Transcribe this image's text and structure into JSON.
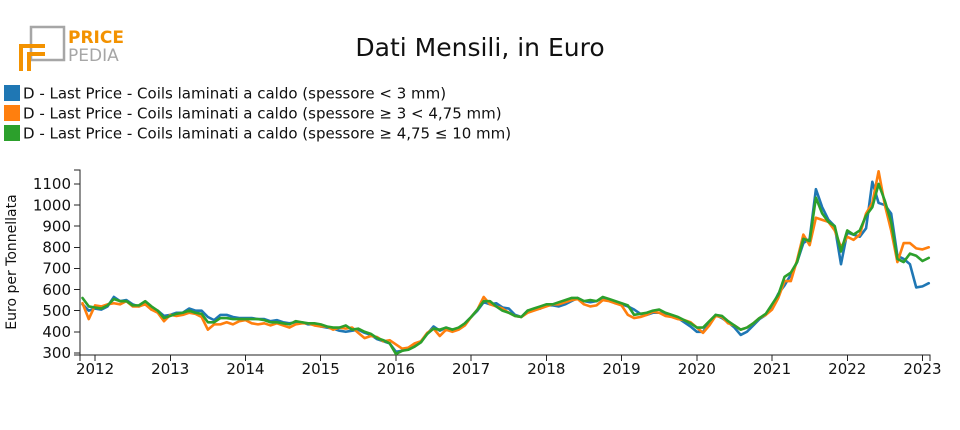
{
  "logo": {
    "line1": "PRICE",
    "line2": "PEDIA",
    "accent_color": "#f39200",
    "grey_color": "#a6a6a6"
  },
  "chart_data": {
    "type": "line",
    "title": "Dati Mensili, in Euro",
    "xlabel": "",
    "ylabel": "Euro per Tonnellata",
    "xlim": [
      2011.8,
      2023.1
    ],
    "ylim": [
      290,
      1166
    ],
    "xticks": [
      2012,
      2013,
      2014,
      2015,
      2016,
      2017,
      2018,
      2019,
      2020,
      2021,
      2022,
      2023
    ],
    "yticks": [
      300,
      400,
      500,
      600,
      700,
      800,
      900,
      1000,
      1100
    ],
    "grid": false,
    "legend": "top-left",
    "x_start_year": 2011,
    "x_start_month": 11,
    "points_per_year": 12,
    "series": [
      {
        "name": "D - Last Price - Coils laminati a caldo (spessore < 3 mm)",
        "color": "#1f77b4",
        "values": [
          530,
          500,
          510,
          505,
          520,
          565,
          545,
          550,
          530,
          520,
          535,
          505,
          500,
          475,
          480,
          490,
          490,
          510,
          500,
          500,
          470,
          455,
          480,
          480,
          470,
          465,
          465,
          465,
          460,
          460,
          450,
          455,
          445,
          440,
          445,
          445,
          435,
          435,
          425,
          420,
          415,
          405,
          400,
          405,
          410,
          395,
          385,
          365,
          355,
          345,
          305,
          310,
          320,
          335,
          355,
          390,
          425,
          405,
          420,
          410,
          415,
          440,
          470,
          500,
          540,
          530,
          535,
          515,
          510,
          480,
          470,
          500,
          505,
          510,
          525,
          525,
          520,
          530,
          545,
          560,
          545,
          540,
          545,
          560,
          550,
          535,
          530,
          520,
          505,
          485,
          480,
          490,
          490,
          485,
          475,
          465,
          445,
          425,
          400,
          400,
          440,
          480,
          465,
          445,
          420,
          385,
          400,
          430,
          460,
          480,
          520,
          580,
          620,
          670,
          730,
          820,
          840,
          1075,
          990,
          930,
          900,
          720,
          870,
          860,
          850,
          890,
          1110,
          1010,
          1000,
          960,
          760,
          745,
          720,
          610,
          615,
          630
        ]
      },
      {
        "name": "D - Last Price - Coils laminati a caldo (spessore ≥ 3 < 4,75 mm)",
        "color": "#ff7f0e",
        "values": [
          535,
          460,
          525,
          520,
          530,
          535,
          530,
          545,
          520,
          520,
          530,
          505,
          490,
          450,
          480,
          475,
          480,
          490,
          485,
          470,
          410,
          435,
          435,
          445,
          435,
          450,
          455,
          440,
          435,
          440,
          430,
          440,
          430,
          420,
          435,
          440,
          440,
          430,
          425,
          425,
          410,
          420,
          415,
          420,
          395,
          370,
          380,
          375,
          355,
          360,
          340,
          320,
          325,
          345,
          355,
          395,
          415,
          380,
          410,
          400,
          410,
          430,
          470,
          505,
          565,
          530,
          520,
          510,
          490,
          475,
          470,
          490,
          500,
          510,
          520,
          530,
          530,
          540,
          550,
          555,
          530,
          520,
          525,
          550,
          545,
          535,
          525,
          480,
          465,
          470,
          480,
          495,
          490,
          475,
          470,
          460,
          455,
          445,
          420,
          395,
          430,
          475,
          470,
          440,
          430,
          410,
          420,
          440,
          465,
          480,
          505,
          560,
          640,
          640,
          740,
          860,
          810,
          940,
          930,
          920,
          880,
          800,
          850,
          835,
          860,
          960,
          1010,
          1160,
          1000,
          880,
          730,
          820,
          820,
          795,
          790,
          800
        ]
      },
      {
        "name": "D - Last Price - Coils laminati a caldo (spessore ≥ 4,75 ≤ 10 mm)",
        "color": "#2ca02c",
        "values": [
          560,
          520,
          515,
          510,
          525,
          555,
          545,
          545,
          525,
          525,
          545,
          520,
          500,
          465,
          475,
          485,
          490,
          500,
          490,
          485,
          445,
          445,
          465,
          465,
          460,
          460,
          460,
          460,
          460,
          455,
          445,
          445,
          440,
          435,
          450,
          445,
          440,
          440,
          435,
          425,
          420,
          420,
          430,
          410,
          415,
          400,
          390,
          370,
          360,
          345,
          295,
          310,
          315,
          330,
          350,
          390,
          415,
          410,
          420,
          410,
          420,
          440,
          470,
          505,
          545,
          545,
          520,
          500,
          490,
          475,
          470,
          500,
          510,
          520,
          530,
          530,
          540,
          550,
          560,
          560,
          545,
          550,
          545,
          565,
          555,
          545,
          535,
          525,
          480,
          485,
          490,
          500,
          505,
          490,
          480,
          470,
          455,
          440,
          420,
          420,
          450,
          480,
          475,
          450,
          430,
          410,
          420,
          440,
          465,
          485,
          530,
          575,
          660,
          680,
          730,
          840,
          830,
          1035,
          960,
          920,
          900,
          780,
          880,
          860,
          880,
          950,
          990,
          1100,
          1020,
          920,
          745,
          730,
          770,
          760,
          735,
          750
        ]
      }
    ]
  }
}
